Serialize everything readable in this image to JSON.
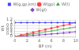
{
  "chart_data": {
    "type": "line",
    "xlabel": "BP (m)",
    "ylabel": "Wk",
    "x": [
      0,
      1,
      2,
      3,
      4,
      5,
      6,
      7,
      8,
      9,
      10
    ],
    "series": [
      {
        "name": "W(g,gp,km)",
        "color": "#4444ff",
        "marker": "square",
        "line_style": "solid",
        "values": [
          1.0,
          1.0,
          1.0,
          1.0,
          1.0,
          1.0,
          1.0,
          1.0,
          1.0,
          1.0,
          1.0
        ]
      },
      {
        "name": "W(gp)",
        "color": "#ff4444",
        "marker": "circle",
        "line_style": "solid",
        "values": [
          0.0,
          0.1,
          0.2,
          0.3,
          0.4,
          0.5,
          0.6,
          0.7,
          0.8,
          0.9,
          1.0
        ]
      },
      {
        "name": "W(l)",
        "color": "#44aa44",
        "marker": "triangle",
        "line_style": "solid",
        "values": [
          0.0,
          0.06,
          0.13,
          0.19,
          0.26,
          0.33,
          0.4,
          0.47,
          0.54,
          0.61,
          0.68
        ]
      },
      {
        "name": "W(gl)",
        "color": "#8844cc",
        "marker": "diamond",
        "line_style": "solid",
        "values": [
          0.0,
          0.02,
          0.05,
          0.08,
          0.11,
          0.14,
          0.18,
          0.22,
          0.26,
          0.3,
          0.34
        ]
      }
    ],
    "xlim": [
      0,
      10
    ],
    "ylim": [
      0,
      1.2
    ],
    "xticks": [
      0,
      2,
      4,
      6,
      8,
      10
    ],
    "yticks": [
      0,
      0.2,
      0.4,
      0.6,
      0.8,
      1.0,
      1.2
    ],
    "grid": true,
    "legend": "top"
  }
}
